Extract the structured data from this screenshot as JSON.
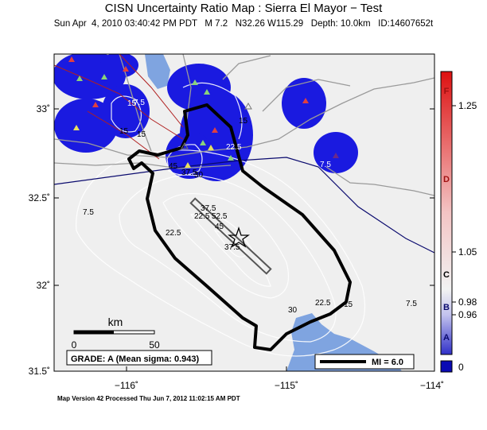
{
  "title": "CISN Uncertainty Ratio Map : Sierra El Mayor − Test",
  "subtitle": "Sun Apr  4, 2010 03:40:42 PM PDT   M 7.2   N32.26 W115.29   Depth: 10.0km   ID:14607652t",
  "footer": "Map Version 42 Processed Thu Jun  7, 2012 11:02:15 AM PDT",
  "axes": {
    "lat_ticks": [
      "33˚",
      "32.5˚",
      "32˚",
      "31.5˚"
    ],
    "lon_ticks": [
      "−116˚",
      "−115˚",
      "−114˚"
    ]
  },
  "contour_labels": [
    "7.5",
    "15",
    "15",
    "22.5",
    "30",
    "37.5",
    "45",
    "7.5",
    "22.5",
    "37.5",
    "52.5",
    "45",
    "37.5",
    "22.5",
    "30",
    "22.5",
    "15",
    "7.5",
    "7.5",
    "15",
    "15"
  ],
  "scale_bar": {
    "unit": "km",
    "start": "0",
    "end": "50"
  },
  "grade": "GRADE: A (Mean sigma: 0.943)",
  "legend": {
    "mi_label": "MI = 6.0"
  },
  "colorbar": {
    "letters": [
      "F",
      "D",
      "C",
      "B",
      "A"
    ],
    "values": [
      "1.25",
      "1.05",
      "0.98",
      "0.96",
      "0"
    ],
    "colors": {
      "top": "#dd1111",
      "mid": "#f2f2f2",
      "bottom": "#0a0ab4"
    }
  },
  "colors": {
    "land": "#efefef",
    "water": "#7fa4e0",
    "uncertainty": "#1a1ae0",
    "border": "#0a0a6e"
  }
}
